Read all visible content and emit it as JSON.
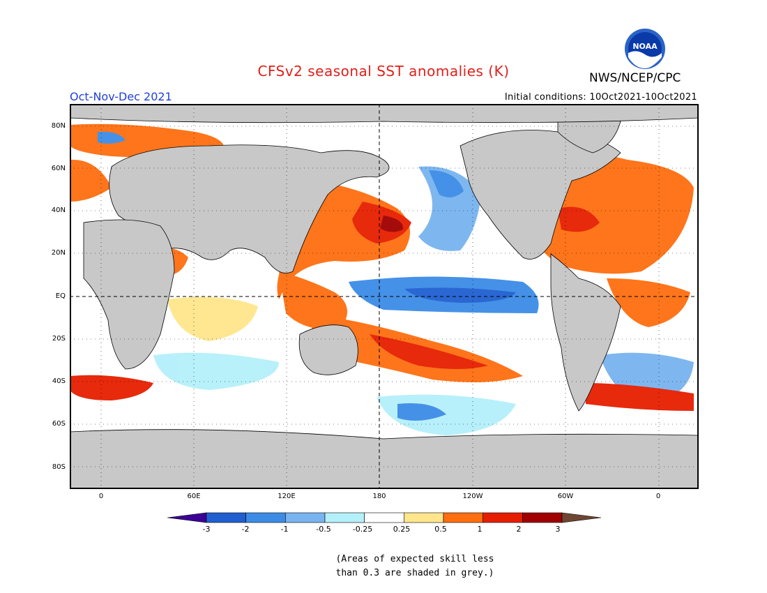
{
  "header": {
    "title": "CFSv2 seasonal SST anomalies (K)",
    "period": "Oct-Nov-Dec 2021",
    "initial_conditions": "Initial conditions: 10Oct2021-10Oct2021",
    "agency": "NWS/NCEP/CPC",
    "logo_text": "NOAA"
  },
  "map": {
    "lat_labels": [
      "80N",
      "60N",
      "40N",
      "20N",
      "EQ",
      "20S",
      "40S",
      "60S",
      "80S"
    ],
    "lon_labels": [
      "0",
      "60E",
      "120E",
      "180",
      "120W",
      "60W",
      "0"
    ],
    "land_color": "#c8c8c8",
    "grid": "dotted"
  },
  "colorbar": {
    "labels": [
      "-3",
      "-2",
      "-1",
      "-0.5",
      "-0.25",
      "0.25",
      "0.5",
      "1",
      "2",
      "3"
    ],
    "colors": [
      "#3c0096",
      "#1f5fd0",
      "#3c8ce6",
      "#78b4f0",
      "#b4f0fa",
      "#ffffff",
      "#ffe68c",
      "#ff6e0f",
      "#e61e00",
      "#a00000",
      "#6e4632"
    ]
  },
  "footnote": "(Areas of expected skill less\nthan 0.3 are shaded in grey.)"
}
